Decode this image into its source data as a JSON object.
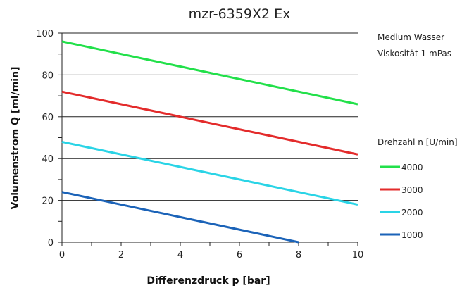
{
  "chart_data": {
    "type": "line",
    "title": "mzr-6359X2 Ex",
    "xlabel": "Differenzdruck p [bar]",
    "ylabel": "Volumenstrom Q [ml/min]",
    "xlim": [
      0,
      10
    ],
    "ylim": [
      0,
      100
    ],
    "xticks": [
      0,
      2,
      4,
      6,
      8,
      10
    ],
    "yticks": [
      0,
      20,
      40,
      60,
      80,
      100
    ],
    "x_tick_labels": [
      "0",
      "2",
      "4",
      "6",
      "8",
      "10"
    ],
    "y_tick_labels": [
      "0",
      "20",
      "40",
      "60",
      "80",
      "100"
    ],
    "grid": "horizontal",
    "legend_position": "right",
    "legend_title": "Drehzahl n [U/min]",
    "notes": [
      "Medium Wasser",
      "Viskosität 1 mPas"
    ],
    "series": [
      {
        "name": "4000",
        "color": "#22e04a",
        "points": [
          [
            0,
            96
          ],
          [
            10,
            66
          ]
        ]
      },
      {
        "name": "3000",
        "color": "#e32b2b",
        "points": [
          [
            0,
            72
          ],
          [
            10,
            42
          ]
        ]
      },
      {
        "name": "2000",
        "color": "#2ad4e6",
        "points": [
          [
            0,
            48
          ],
          [
            10,
            18
          ]
        ]
      },
      {
        "name": "1000",
        "color": "#1b63b8",
        "points": [
          [
            0,
            24
          ],
          [
            8,
            0
          ]
        ]
      }
    ]
  }
}
